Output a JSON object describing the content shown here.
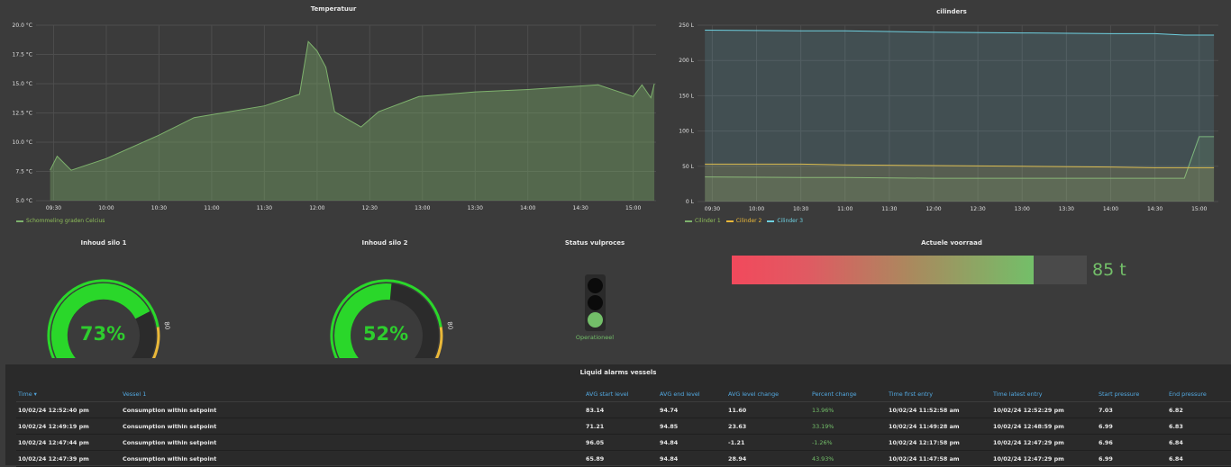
{
  "temp": {
    "title": "Temperatuur",
    "yticks": [
      "20.0 °C",
      "17.5 °C",
      "15.0 °C",
      "12.5 °C",
      "10.0 °C",
      "7.5 °C",
      "5.0 °C"
    ],
    "xticks": [
      "09:30",
      "10:00",
      "10:30",
      "11:00",
      "11:30",
      "12:00",
      "12:30",
      "13:00",
      "13:30",
      "14:00",
      "14:30",
      "15:00"
    ],
    "legend": "Schommeling graden Celcius",
    "color": "#7eb26d"
  },
  "cil": {
    "title": "cilinders",
    "yticks": [
      "250 L",
      "200 L",
      "150 L",
      "100 L",
      "50 L",
      "0 L"
    ],
    "xticks": [
      "09:30",
      "10:00",
      "10:30",
      "11:00",
      "11:30",
      "12:00",
      "12:30",
      "13:00",
      "13:30",
      "14:00",
      "14:30",
      "15:00"
    ],
    "legend": [
      {
        "name": "Cilinder 1",
        "color": "#7eb26d"
      },
      {
        "name": "Cilinder 2",
        "color": "#eab839"
      },
      {
        "name": "Cilinder 3",
        "color": "#6ed0e0"
      }
    ]
  },
  "chart_data": [
    {
      "type": "area",
      "title": "Temperatuur",
      "ylim": [
        5,
        20
      ],
      "x": [
        "09:28",
        "09:32",
        "09:40",
        "10:00",
        "10:30",
        "10:50",
        "11:30",
        "11:50",
        "11:55",
        "12:00",
        "12:05",
        "12:10",
        "12:25",
        "12:35",
        "12:58",
        "13:30",
        "14:00",
        "14:40",
        "15:00",
        "15:05",
        "15:10",
        "15:12"
      ],
      "series": [
        {
          "name": "Schommeling graden Celcius",
          "values": [
            7.6,
            8.8,
            7.6,
            8.6,
            10.6,
            12.1,
            13.1,
            14.1,
            18.6,
            17.8,
            16.4,
            12.6,
            11.3,
            12.6,
            13.9,
            14.3,
            14.5,
            14.9,
            13.9,
            14.9,
            13.8,
            15.0
          ]
        }
      ]
    },
    {
      "type": "line",
      "title": "cilinders",
      "ylim": [
        0,
        250
      ],
      "x": [
        "09:25",
        "10:30",
        "11:00",
        "12:00",
        "13:00",
        "14:00",
        "14:30",
        "14:50",
        "15:00",
        "15:10"
      ],
      "series": [
        {
          "name": "Cilinder 1",
          "values": [
            35,
            34,
            34,
            33,
            33,
            33,
            33,
            33,
            92,
            92
          ]
        },
        {
          "name": "Cilinder 2",
          "values": [
            53,
            53,
            52,
            51,
            50,
            49,
            48,
            48,
            48,
            48
          ]
        },
        {
          "name": "Cilinder 3",
          "values": [
            243,
            242,
            242,
            240,
            239,
            238,
            238,
            236,
            236,
            236
          ]
        }
      ]
    }
  ],
  "silo1": {
    "title": "Inhoud silo 1",
    "value": "73%",
    "level": 73,
    "min": "0",
    "mark": "80",
    "max": "100"
  },
  "silo2": {
    "title": "Inhoud silo 2",
    "value": "52%",
    "level": 52,
    "min": "0",
    "mark": "80",
    "max": "100"
  },
  "status": {
    "title": "Status vulproces",
    "label": "Operationeel",
    "active_color": "#73bf69"
  },
  "stock": {
    "title": "Actuele voorraad",
    "value": "85 t",
    "level": 85
  },
  "alarms": {
    "title": "Liquid alarms vessels",
    "columns": [
      "Time ▾",
      "Vessel 1",
      "AVG start level",
      "AVG end level",
      "AVG level change",
      "Percent change",
      "Time first entry",
      "Time latest entry",
      "Start pressure",
      "End pressure"
    ],
    "rows": [
      [
        "10/02/24 12:52:40 pm",
        "Consumption within setpoint",
        "83.14",
        "94.74",
        "11.60",
        "13.96%",
        "10/02/24 11:52:58 am",
        "10/02/24 12:52:29 pm",
        "7.03",
        "6.82"
      ],
      [
        "10/02/24 12:49:19 pm",
        "Consumption within setpoint",
        "71.21",
        "94.85",
        "23.63",
        "33.19%",
        "10/02/24 11:49:28 am",
        "10/02/24 12:48:59 pm",
        "6.99",
        "6.83"
      ],
      [
        "10/02/24 12:47:44 pm",
        "Consumption within setpoint",
        "96.05",
        "94.84",
        "-1.21",
        "-1.26%",
        "10/02/24 12:17:58 pm",
        "10/02/24 12:47:29 pm",
        "6.96",
        "6.84"
      ],
      [
        "10/02/24 12:47:39 pm",
        "Consumption within setpoint",
        "65.89",
        "94.84",
        "28.94",
        "43.93%",
        "10/02/24 11:47:58 am",
        "10/02/24 12:47:29 pm",
        "6.99",
        "6.84"
      ]
    ]
  }
}
